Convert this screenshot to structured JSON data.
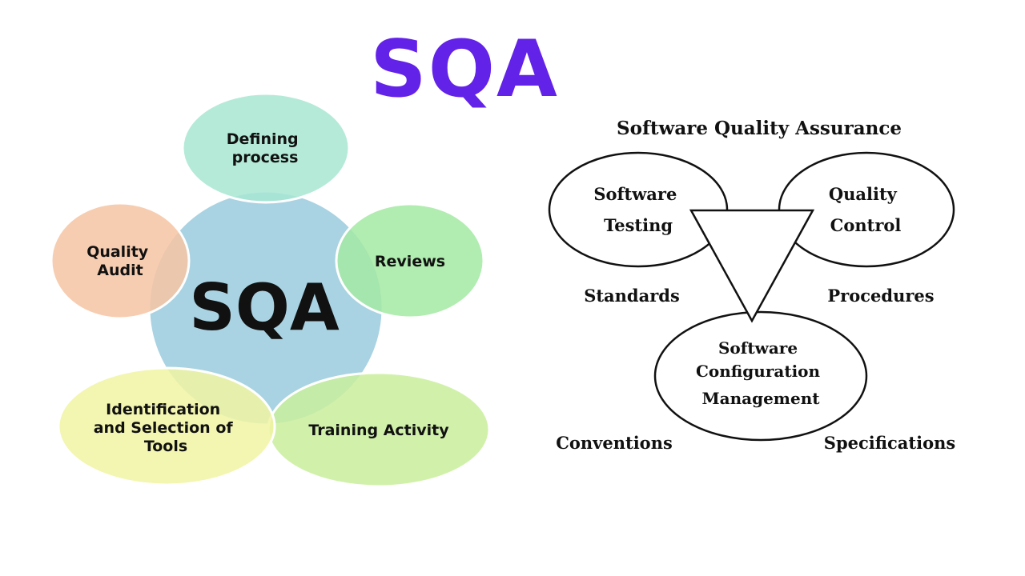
{
  "title": "SQA",
  "colors": {
    "title": "#6322e8",
    "center_circle": "#a9d3e2",
    "defining_process": "#a8e6d2",
    "reviews": "#a3e9a3",
    "quality_audit": "#f6c4a3",
    "identification_tools": "#f1f4a2",
    "training_activity": "#c9ee9c"
  },
  "left_diagram": {
    "center": "SQA",
    "defining_process": [
      "Defining",
      "process"
    ],
    "reviews": [
      "Reviews"
    ],
    "quality_audit": [
      "Quality",
      "Audit"
    ],
    "identification_tools": [
      "Identification",
      "and Selection of",
      "Tools"
    ],
    "training_activity": [
      "Training Activity"
    ]
  },
  "right_diagram": {
    "heading": "Software Quality Assurance",
    "software_testing": [
      "Software",
      "Testing"
    ],
    "quality_control": [
      "Quality",
      "Control"
    ],
    "configuration_management": [
      "Software",
      "Configuration",
      "Management"
    ],
    "standards": "Standards",
    "procedures": "Procedures",
    "conventions": "Conventions",
    "specifications": "Specifications"
  }
}
